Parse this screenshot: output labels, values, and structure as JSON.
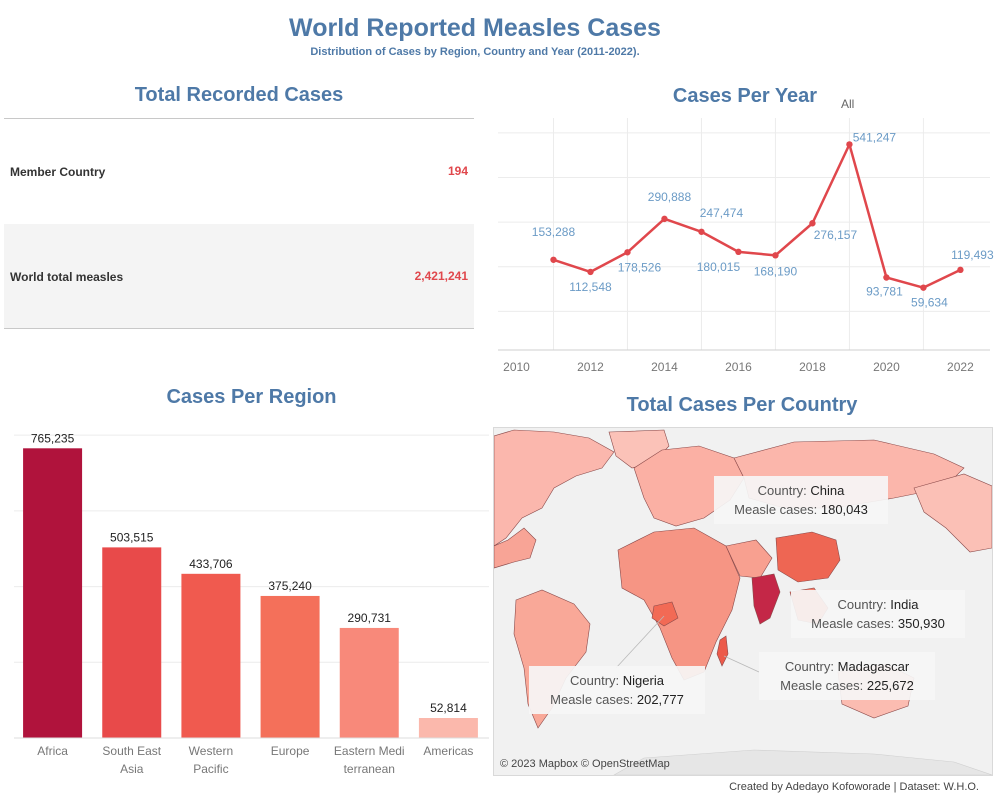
{
  "header": {
    "title": "World Reported Measles Cases",
    "subtitle": "Distribution of Cases by Region, Country and Year (2011-2022)."
  },
  "totals": {
    "title": "Total Recorded Cases",
    "rows": [
      {
        "label": "Member Country",
        "value": "194"
      },
      {
        "label": "World total measles",
        "value": "2,421,241"
      }
    ]
  },
  "colors": {
    "accent": "#4e79a7",
    "line": "#e0474c",
    "data_label": "#6b9bc6",
    "kpi_value": "#e0474c",
    "bars": [
      "#b0133c",
      "#e84a4a",
      "#f05a4f",
      "#f4705a",
      "#f8897a",
      "#fbb8ac"
    ]
  },
  "chart_data": [
    {
      "type": "line",
      "title": "Cases Per Year",
      "filter_label": "All",
      "x": [
        2011,
        2012,
        2013,
        2014,
        2015,
        2016,
        2017,
        2018,
        2019,
        2020,
        2021,
        2022
      ],
      "values": [
        153288,
        112548,
        178526,
        290888,
        247474,
        180015,
        168190,
        276157,
        541247,
        93781,
        59634,
        119493
      ],
      "labels": [
        "153,288",
        "112,548",
        "178,526",
        "290,888",
        "247,474",
        "180,015",
        "168,190",
        "276,157",
        "541,247",
        "93,781",
        "59,634",
        "119,493"
      ],
      "x_ticks": [
        "2010",
        "2012",
        "2014",
        "2016",
        "2018",
        "2020",
        "2022"
      ],
      "xlim": [
        2009.5,
        2022.8
      ],
      "ylim": [
        -150000,
        630000
      ],
      "grid": true
    },
    {
      "type": "bar",
      "title": "Cases Per Region",
      "categories": [
        "Africa",
        "South East Asia",
        "Western Pacific",
        "Europe",
        "Eastern Mediterranean",
        "Americas"
      ],
      "category_lines": [
        [
          "Africa"
        ],
        [
          "South East",
          "Asia"
        ],
        [
          "Western",
          "Pacific"
        ],
        [
          "Europe"
        ],
        [
          "Eastern Medi",
          "terranean"
        ],
        [
          "Americas"
        ]
      ],
      "values": [
        765235,
        503515,
        433706,
        375240,
        290731,
        52814
      ],
      "labels": [
        "765,235",
        "503,515",
        "433,706",
        "375,240",
        "290,731",
        "52,814"
      ],
      "ylim": [
        0,
        840000
      ],
      "grid": true
    }
  ],
  "map": {
    "title": "Total Cases Per Country",
    "field_country": "Country:",
    "field_cases": "Measle cases:",
    "tooltips": [
      {
        "country": "China",
        "cases": "180,043"
      },
      {
        "country": "India",
        "cases": "350,930"
      },
      {
        "country": "Nigeria",
        "cases": "202,777"
      },
      {
        "country": "Madagascar",
        "cases": "225,672"
      }
    ],
    "attribution": "© 2023 Mapbox © OpenStreetMap"
  },
  "footer": {
    "credit": "Created by Adedayo Kofoworade | Dataset: W.H.O."
  }
}
